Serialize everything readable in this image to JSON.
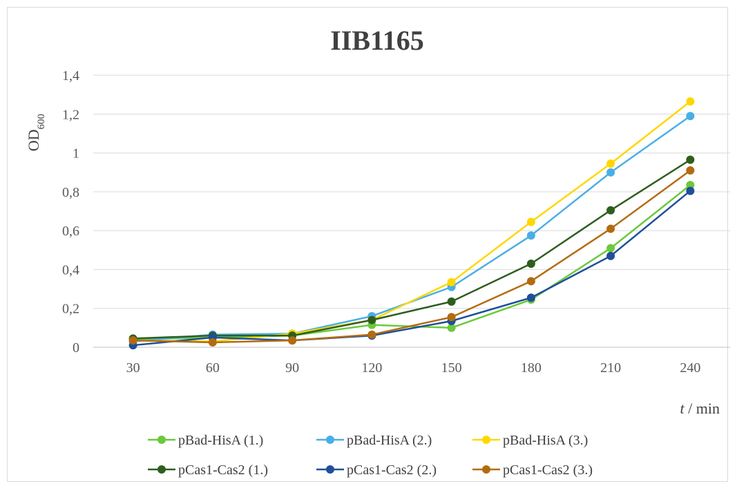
{
  "chart_data": {
    "type": "line",
    "title": "IIB1165",
    "ylabel": "OD",
    "ylabel_sub": "600",
    "xlabel_var": "t",
    "xlabel_unit": " / min",
    "x": [
      30,
      60,
      90,
      120,
      150,
      180,
      210,
      240
    ],
    "ylim": [
      0,
      1.4
    ],
    "yticks": [
      "0",
      "0,2",
      "0,4",
      "0,6",
      "0,8",
      "1",
      "1,2",
      "1,4"
    ],
    "grid": true,
    "legend_position": "bottom",
    "series": [
      {
        "name": "pBad-HisA (1.)",
        "color": "#6cc93c",
        "values": [
          0.04,
          0.05,
          0.06,
          0.115,
          0.1,
          0.245,
          0.51,
          0.835
        ]
      },
      {
        "name": "pBad-HisA (2.)",
        "color": "#4aaee6",
        "values": [
          0.03,
          0.065,
          0.07,
          0.16,
          0.31,
          0.575,
          0.9,
          1.19
        ]
      },
      {
        "name": "pBad-HisA (3.)",
        "color": "#ffd700",
        "values": [
          0.035,
          0.03,
          0.07,
          0.14,
          0.335,
          0.645,
          0.945,
          1.265
        ]
      },
      {
        "name": "pCas1-Cas2 (1.)",
        "color": "#2e5e1e",
        "values": [
          0.045,
          0.06,
          0.06,
          0.14,
          0.235,
          0.43,
          0.705,
          0.965
        ]
      },
      {
        "name": "pCas1-Cas2 (2.)",
        "color": "#1e4f9a",
        "values": [
          0.01,
          0.05,
          0.035,
          0.06,
          0.135,
          0.255,
          0.47,
          0.805
        ]
      },
      {
        "name": "pCas1-Cas2 (3.)",
        "color": "#b36b10",
        "values": [
          0.035,
          0.025,
          0.035,
          0.065,
          0.155,
          0.34,
          0.61,
          0.91
        ]
      }
    ]
  }
}
